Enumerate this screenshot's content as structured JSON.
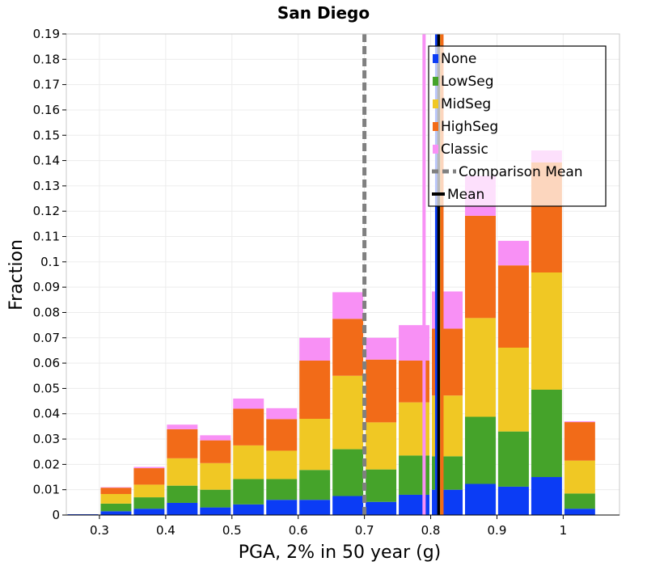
{
  "chart_data": {
    "type": "bar",
    "stacked": true,
    "title": "San Diego",
    "xlabel": "PGA, 2% in 50 year (g)",
    "ylabel": "Fraction",
    "xlim": [
      0.25,
      1.085
    ],
    "ylim": [
      0,
      0.19
    ],
    "bin_width": 0.05,
    "x_ticks": [
      0.3,
      0.4,
      0.5,
      0.6,
      0.7,
      0.8,
      0.9,
      1.0
    ],
    "x_tick_labels": [
      "0.3",
      "0.4",
      "0.5",
      "0.6",
      "0.7",
      "0.8",
      "0.9",
      "1"
    ],
    "y_ticks": [
      0,
      0.01,
      0.02,
      0.03,
      0.04,
      0.05,
      0.06,
      0.07,
      0.08,
      0.09,
      0.1,
      0.11,
      0.12,
      0.13,
      0.14,
      0.15,
      0.16,
      0.17,
      0.18,
      0.19
    ],
    "y_tick_labels": [
      "0",
      "0.01",
      "0.02",
      "0.03",
      "0.04",
      "0.05",
      "0.06",
      "0.07",
      "0.08",
      "0.09",
      "0.1",
      "0.11",
      "0.12",
      "0.13",
      "0.14",
      "0.15",
      "0.16",
      "0.17",
      "0.18",
      "0.19"
    ],
    "bins": [
      0.275,
      0.325,
      0.375,
      0.425,
      0.475,
      0.525,
      0.575,
      0.625,
      0.675,
      0.725,
      0.775,
      0.825,
      0.875,
      0.925,
      0.975,
      1.025
    ],
    "series": [
      {
        "name": "None",
        "color": "#0b3cf5",
        "values": [
          0.0003,
          0.0015,
          0.0025,
          0.0048,
          0.003,
          0.0042,
          0.006,
          0.006,
          0.0075,
          0.0052,
          0.008,
          0.01,
          0.0123,
          0.0112,
          0.015,
          0.0025
        ]
      },
      {
        "name": "LowSeg",
        "color": "#45a32a",
        "values": [
          0,
          0.003,
          0.0045,
          0.0068,
          0.007,
          0.01,
          0.0082,
          0.0118,
          0.0185,
          0.0128,
          0.0155,
          0.0132,
          0.0265,
          0.0218,
          0.0345,
          0.006
        ]
      },
      {
        "name": "MidSeg",
        "color": "#f0c824",
        "values": [
          0,
          0.0038,
          0.005,
          0.0108,
          0.0105,
          0.0133,
          0.0112,
          0.0202,
          0.029,
          0.0186,
          0.021,
          0.024,
          0.039,
          0.0331,
          0.0463,
          0.013
        ]
      },
      {
        "name": "HighSeg",
        "color": "#f26b18",
        "values": [
          0,
          0.0025,
          0.0065,
          0.0115,
          0.009,
          0.0145,
          0.0125,
          0.023,
          0.0225,
          0.0248,
          0.0165,
          0.0264,
          0.0404,
          0.0325,
          0.0435,
          0.0152
        ]
      },
      {
        "name": "Classic",
        "color": "#f890f5",
        "values": [
          0,
          0.0002,
          0.0005,
          0.0018,
          0.002,
          0.004,
          0.0043,
          0.009,
          0.0105,
          0.0086,
          0.014,
          0.0147,
          0.0158,
          0.0097,
          0.0047,
          0.0003
        ]
      }
    ],
    "legend": [
      {
        "label": "None",
        "kind": "swatch",
        "color": "#0b3cf5"
      },
      {
        "label": "LowSeg",
        "kind": "swatch",
        "color": "#45a32a"
      },
      {
        "label": "MidSeg",
        "kind": "swatch",
        "color": "#f0c824"
      },
      {
        "label": "HighSeg",
        "kind": "swatch",
        "color": "#f26b18"
      },
      {
        "label": "Classic",
        "kind": "swatch",
        "color": "#f890f5"
      },
      {
        "label": "Comparison Mean",
        "kind": "dashed",
        "color": "#808080"
      },
      {
        "label": "Mean",
        "kind": "line",
        "color": "#000000"
      }
    ],
    "legend_position": "top-right",
    "comparison_mean": 0.7,
    "overall_mean": 0.812,
    "series_means": [
      {
        "name": "None",
        "value": 0.809,
        "color": "#0b3cf5"
      },
      {
        "name": "LowSeg",
        "value": 0.815,
        "color": "#45a32a"
      },
      {
        "name": "MidSeg",
        "value": 0.816,
        "color": "#f0c824"
      },
      {
        "name": "HighSeg",
        "value": 0.817,
        "color": "#f26b18"
      },
      {
        "name": "Classic",
        "value": 0.79,
        "color": "#f890f5"
      }
    ]
  }
}
